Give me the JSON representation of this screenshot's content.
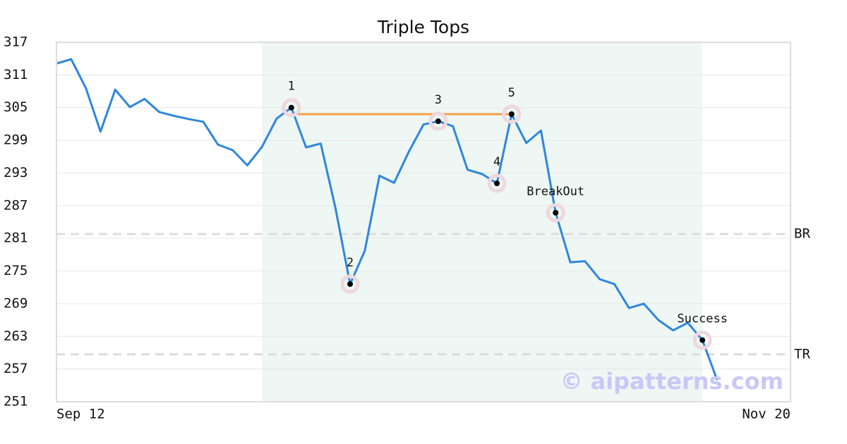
{
  "chart_data": {
    "type": "line",
    "title": "Triple Tops",
    "x": [
      0,
      1,
      2,
      3,
      4,
      5,
      6,
      7,
      8,
      9,
      10,
      11,
      12,
      13,
      14,
      15,
      16,
      17,
      18,
      19,
      20,
      21,
      22,
      23,
      24,
      25,
      26,
      27,
      28,
      29,
      30,
      31,
      32,
      33,
      34,
      35,
      36,
      37,
      38,
      39,
      40,
      41,
      42,
      43,
      44,
      45
    ],
    "values": [
      313.1,
      313.9,
      308.6,
      300.6,
      308.3,
      305.1,
      306.6,
      304.2,
      303.5,
      302.9,
      302.4,
      298.2,
      297.2,
      294.4,
      297.8,
      303.0,
      305.0,
      297.7,
      298.4,
      286.6,
      272.6,
      278.7,
      292.5,
      291.2,
      296.9,
      301.9,
      302.5,
      301.6,
      293.6,
      292.8,
      291.1,
      303.8,
      298.5,
      300.8,
      285.7,
      276.6,
      276.8,
      273.5,
      272.6,
      268.2,
      269.0,
      266.0,
      264.1,
      265.5,
      262.3,
      255.0
    ],
    "color": "#2e86de",
    "xlim": [
      0,
      50
    ],
    "xticks": [
      {
        "value": 0,
        "label": "Sep 12"
      },
      {
        "value": 50,
        "label": "Nov 20"
      }
    ],
    "ylim": [
      251,
      317
    ],
    "yticks": [
      251,
      257,
      263,
      269,
      275,
      281,
      287,
      293,
      299,
      305,
      311,
      317
    ],
    "grid": true,
    "shade": {
      "x": [
        14,
        44
      ],
      "color": "#eef7f3"
    },
    "resistance": {
      "x": [
        16,
        31
      ],
      "value": 303.8,
      "color": "#f5a04a"
    },
    "hlines": [
      {
        "label": "BR",
        "value": 281.8
      },
      {
        "label": "TR",
        "value": 259.7
      }
    ],
    "markers": [
      {
        "label": "1",
        "x": 16,
        "value": 305.0
      },
      {
        "label": "2",
        "x": 20,
        "value": 272.6
      },
      {
        "label": "3",
        "x": 26,
        "value": 302.5
      },
      {
        "label": "4",
        "x": 30,
        "value": 291.1
      },
      {
        "label": "5",
        "x": 31,
        "value": 303.8
      },
      {
        "label": "BreakOut",
        "x": 34,
        "value": 285.7
      },
      {
        "label": "Success",
        "x": 44,
        "value": 262.3
      }
    ],
    "watermark": "© aipatterns.com"
  }
}
